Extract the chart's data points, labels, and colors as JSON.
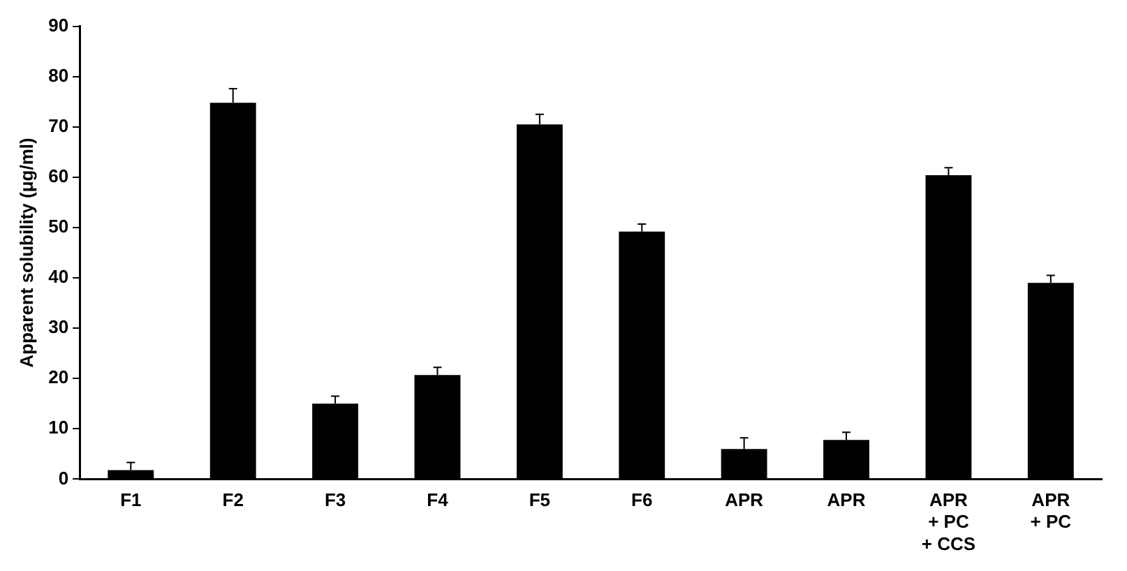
{
  "chart_data": {
    "type": "bar",
    "ylabel": "Apparent solubility (μg/ml)",
    "categories": [
      "F1",
      "F2",
      "F3",
      "F4",
      "F5",
      "F6",
      "APR",
      "APR",
      "APR + PC + CCS",
      "APR + PC"
    ],
    "values": [
      1.8,
      74.8,
      15,
      20.7,
      70.5,
      49.2,
      6,
      7.8,
      60.4,
      39
    ],
    "errors": [
      [
        1.8,
        3.3
      ],
      [
        74.8,
        77.6
      ],
      [
        15,
        16.5
      ],
      [
        20.7,
        22.2
      ],
      [
        70.5,
        72.5
      ],
      [
        49.2,
        50.7
      ],
      [
        6,
        8.2
      ],
      [
        7.8,
        9.3
      ],
      [
        60.4,
        61.9
      ],
      [
        39,
        40.5
      ]
    ],
    "color": "#000000",
    "ylim": [
      0,
      90
    ],
    "yticks": [
      0,
      10,
      20,
      30,
      40,
      50,
      60,
      70,
      80,
      90
    ],
    "grid": false,
    "legend": false
  }
}
